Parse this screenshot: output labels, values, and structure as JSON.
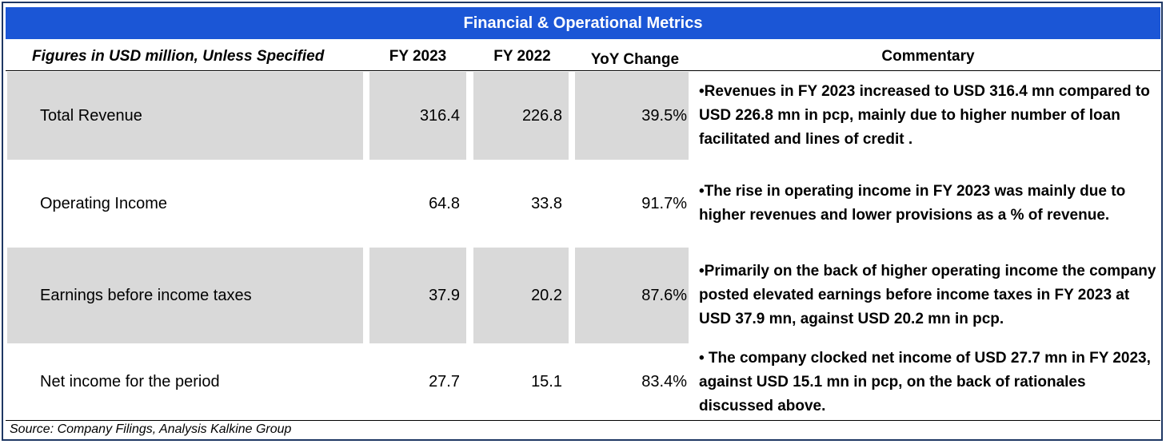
{
  "title": "Financial & Operational Metrics",
  "headers": {
    "label": "Figures in USD million, Unless Specified",
    "fy2023": "FY 2023",
    "fy2022": "FY 2022",
    "yoy": "YoY Change",
    "commentary": "Commentary"
  },
  "rows": [
    {
      "label": "Total Revenue",
      "fy2023": "316.4",
      "fy2022": "226.8",
      "yoy": "39.5%",
      "commentary": "•Revenues in FY 2023 increased to USD 316.4 mn compared to USD 226.8 mn in pcp, mainly due to higher number of loan facilitated and lines of credit ."
    },
    {
      "label": "Operating Income",
      "fy2023": "64.8",
      "fy2022": "33.8",
      "yoy": "91.7%",
      "commentary": "•The rise in operating income in FY 2023 was mainly due to higher revenues and lower provisions as a % of revenue."
    },
    {
      "label": "Earnings before income taxes",
      "fy2023": "37.9",
      "fy2022": "20.2",
      "yoy": "87.6%",
      "commentary": "•Primarily on the back of higher operating income the company posted elevated earnings before income taxes in FY 2023 at USD 37.9 mn, against USD 20.2 mn in pcp."
    },
    {
      "label": "Net income for the period",
      "fy2023": "27.7",
      "fy2022": "15.1",
      "yoy": "83.4%",
      "commentary": "• The company clocked net income of USD 27.7 mn in FY 2023, against USD 15.1 mn in pcp, on the back of rationales discussed above."
    }
  ],
  "source": "Source: Company Filings, Analysis Kalkine Group",
  "colors": {
    "title_bg": "#1b56d6",
    "shade": "#d9d9d9"
  }
}
